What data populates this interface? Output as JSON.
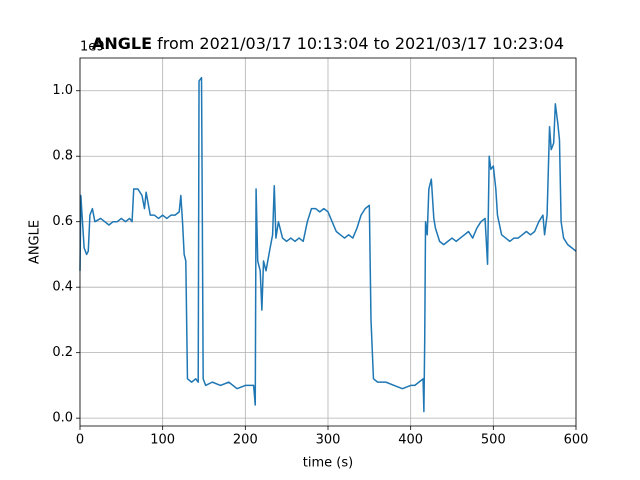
{
  "chart_data": {
    "type": "line",
    "title_bold": "ANGLE",
    "title": "from 2021/03/17 10:13:04 to 2021/03/17 10:23:04",
    "offset_label": "1e9",
    "xlabel": "time (s)",
    "ylabel": "ANGLE",
    "color": "#1f77b4",
    "grid": true,
    "xlim": [
      0,
      600
    ],
    "ylim": [
      -0.024,
      1.1
    ],
    "xticks": [
      0,
      100,
      200,
      300,
      400,
      500,
      600
    ],
    "yticks": [
      {
        "value": 0,
        "label": "0.0"
      },
      0.2,
      0.4,
      0.6,
      0.8,
      {
        "value": 1,
        "label": "1.0"
      }
    ],
    "x": [
      0,
      1,
      3,
      5,
      8,
      10,
      12,
      15,
      18,
      25,
      30,
      35,
      40,
      45,
      50,
      55,
      60,
      63,
      65,
      70,
      75,
      78,
      80,
      85,
      90,
      95,
      100,
      105,
      110,
      115,
      120,
      122,
      124,
      126,
      128,
      130,
      135,
      140,
      143,
      144,
      147,
      148,
      149,
      152,
      160,
      170,
      180,
      190,
      200,
      205,
      210,
      212,
      213,
      215,
      218,
      220,
      222,
      225,
      230,
      233,
      235,
      237,
      240,
      245,
      250,
      255,
      260,
      265,
      270,
      275,
      280,
      285,
      290,
      295,
      300,
      305,
      310,
      315,
      320,
      325,
      330,
      335,
      340,
      345,
      350,
      352,
      355,
      360,
      370,
      380,
      390,
      400,
      405,
      410,
      415,
      416,
      417,
      418,
      420,
      422,
      425,
      428,
      430,
      435,
      440,
      445,
      450,
      455,
      460,
      465,
      470,
      475,
      480,
      485,
      490,
      493,
      495,
      497,
      500,
      503,
      505,
      510,
      515,
      520,
      525,
      530,
      535,
      540,
      545,
      550,
      555,
      560,
      562,
      565,
      568,
      570,
      573,
      575,
      578,
      580,
      582,
      585,
      590,
      595,
      600
    ],
    "values": [
      0.45,
      0.68,
      0.6,
      0.52,
      0.5,
      0.51,
      0.62,
      0.64,
      0.6,
      0.61,
      0.6,
      0.59,
      0.6,
      0.6,
      0.61,
      0.6,
      0.61,
      0.6,
      0.7,
      0.7,
      0.68,
      0.64,
      0.69,
      0.62,
      0.62,
      0.61,
      0.62,
      0.61,
      0.62,
      0.62,
      0.63,
      0.68,
      0.6,
      0.5,
      0.48,
      0.12,
      0.11,
      0.12,
      0.11,
      1.03,
      1.04,
      0.6,
      0.12,
      0.1,
      0.11,
      0.1,
      0.11,
      0.09,
      0.1,
      0.1,
      0.1,
      0.04,
      0.7,
      0.48,
      0.45,
      0.33,
      0.48,
      0.45,
      0.52,
      0.56,
      0.71,
      0.55,
      0.6,
      0.55,
      0.54,
      0.55,
      0.54,
      0.55,
      0.54,
      0.6,
      0.64,
      0.64,
      0.63,
      0.64,
      0.63,
      0.6,
      0.57,
      0.56,
      0.55,
      0.56,
      0.55,
      0.58,
      0.62,
      0.64,
      0.65,
      0.3,
      0.12,
      0.11,
      0.11,
      0.1,
      0.09,
      0.1,
      0.1,
      0.11,
      0.12,
      0.02,
      0.24,
      0.6,
      0.56,
      0.7,
      0.73,
      0.61,
      0.58,
      0.54,
      0.53,
      0.54,
      0.55,
      0.54,
      0.55,
      0.56,
      0.57,
      0.55,
      0.58,
      0.6,
      0.61,
      0.47,
      0.8,
      0.76,
      0.77,
      0.7,
      0.62,
      0.56,
      0.55,
      0.54,
      0.55,
      0.55,
      0.56,
      0.57,
      0.56,
      0.57,
      0.6,
      0.62,
      0.56,
      0.62,
      0.89,
      0.82,
      0.84,
      0.96,
      0.9,
      0.85,
      0.6,
      0.55,
      0.53,
      0.52,
      0.51
    ]
  }
}
